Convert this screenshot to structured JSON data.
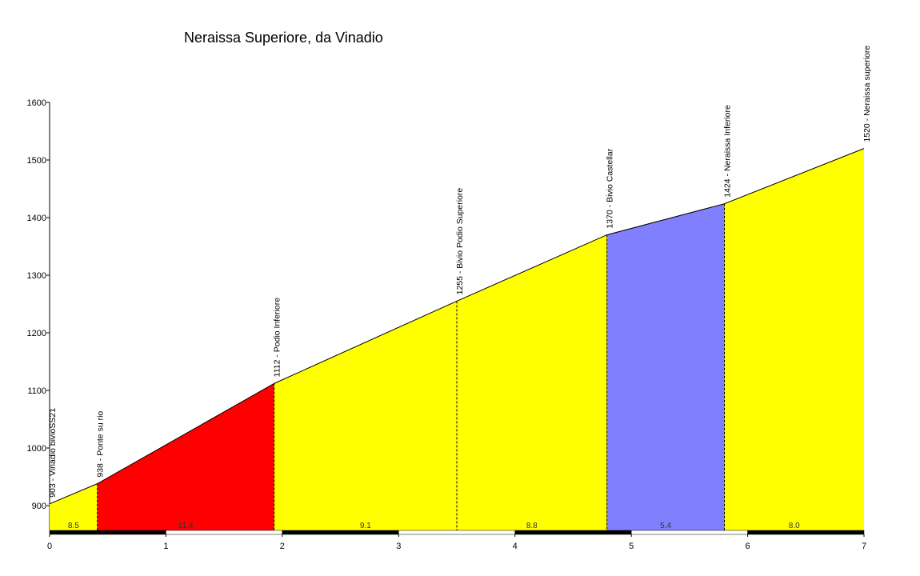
{
  "chart_data": {
    "type": "profile",
    "title": "Neraissa Superiore, da Vinadio",
    "x": [
      0,
      0.41,
      1.93,
      3.5,
      4.79,
      5.8,
      7.0
    ],
    "values": [
      903,
      938,
      1112,
      1255,
      1370,
      1424,
      1520
    ],
    "point_labels": [
      "903 - Vinadio bivioSS21",
      "938 - Ponte su rio",
      "1112 - Podio Inferiore",
      "1255 - Bivio Podio Superiore",
      "1370 - Bivio Castellar",
      "1424 - Neraissa Inferiore",
      "1520 - Neraissa superiore"
    ],
    "grades": {
      "values": [
        8.5,
        11.4,
        9.1,
        8.8,
        5.4,
        8.0
      ],
      "value_labels": [
        "8.5",
        "11.4",
        "9.1",
        "8.8",
        "5.4",
        "8.0"
      ],
      "colors": [
        "#ffff00",
        "#ff0000",
        "#ffff00",
        "#ffff00",
        "#8080ff",
        "#ffff00"
      ]
    },
    "xlim": [
      0,
      7
    ],
    "xticks": [
      0,
      1,
      2,
      3,
      4,
      5,
      6,
      7
    ],
    "ylim": [
      850,
      1600
    ],
    "yticks": [
      900,
      1000,
      1100,
      1200,
      1300,
      1400,
      1500,
      1600
    ]
  }
}
